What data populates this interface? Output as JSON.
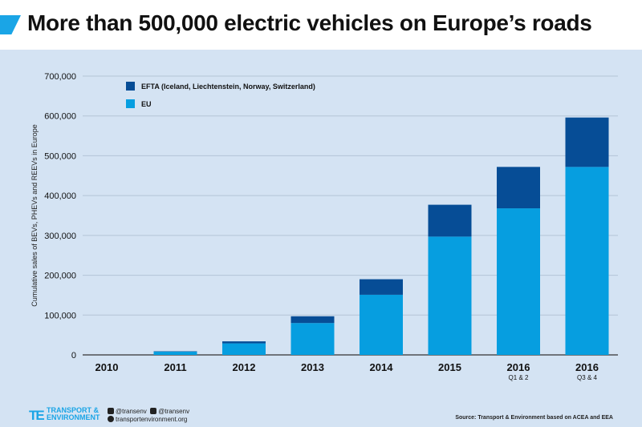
{
  "header": {
    "title": "More than 500,000 electric vehicles on Europe’s roads"
  },
  "chart_data": {
    "type": "bar",
    "stacked": true,
    "title": "More than 500,000 electric vehicles on Europe’s roads",
    "ylabel": "Cumulative sales of BEVs, PHEVs and REEVs in Europe",
    "xlabel": "",
    "ylim": [
      0,
      700000
    ],
    "yticks": [
      "0",
      "100,000",
      "200,000",
      "300,000",
      "400,000",
      "500,000",
      "600,000",
      "700,000"
    ],
    "grid": true,
    "legend_position": "top-left",
    "categories": [
      {
        "label": "2010",
        "sub": ""
      },
      {
        "label": "2011",
        "sub": ""
      },
      {
        "label": "2012",
        "sub": ""
      },
      {
        "label": "2013",
        "sub": ""
      },
      {
        "label": "2014",
        "sub": ""
      },
      {
        "label": "2015",
        "sub": ""
      },
      {
        "label": "2016",
        "sub": "Q1 & 2"
      },
      {
        "label": "2016",
        "sub": "Q3 & 4"
      }
    ],
    "series": [
      {
        "name": "EU",
        "color": "#069ee0",
        "values": [
          0,
          8000,
          29000,
          80000,
          151000,
          297000,
          368000,
          472000
        ]
      },
      {
        "name": "EFTA (Iceland, Liechtenstein, Norway, Switzerland)",
        "color": "#064d96",
        "values": [
          0,
          1000,
          5000,
          17000,
          39000,
          80000,
          104000,
          124000
        ]
      }
    ]
  },
  "footer": {
    "logo_mark": "TE",
    "logo_line1": "TRANSPORT &",
    "logo_line2": "ENVIRONMENT",
    "twitter": "@transenv",
    "facebook": "@transenv",
    "website": "transportenvironment.org",
    "source": "Source: Transport & Environment based on ACEA and EEA"
  }
}
